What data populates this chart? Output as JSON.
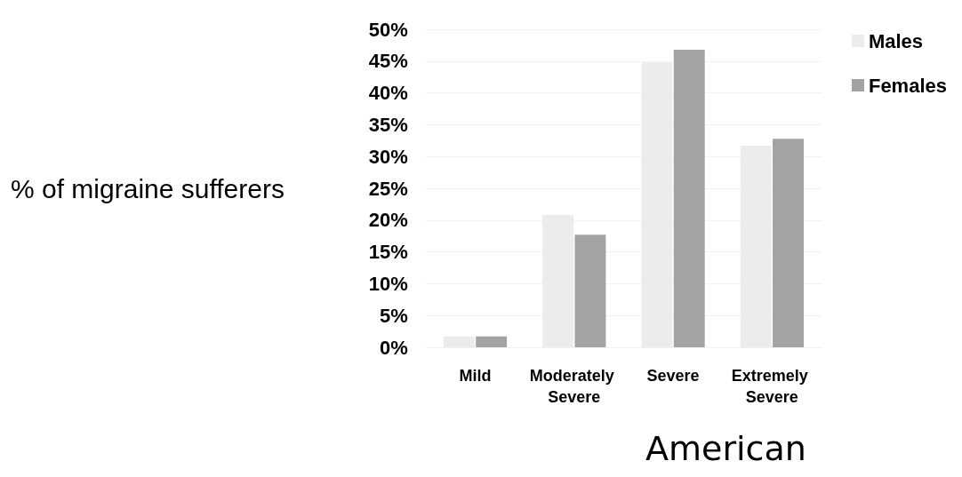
{
  "chart_data": {
    "type": "bar",
    "xlabel": "American",
    "ylabel": "% of migraine sufferers",
    "categories": [
      "Mild",
      "Moderately Severe",
      "Severe",
      "Extremely Severe"
    ],
    "series": [
      {
        "name": "Males",
        "color": "#ececec",
        "values": [
          1.7,
          20.8,
          44.8,
          31.7
        ]
      },
      {
        "name": "Females",
        "color": "#a3a3a3",
        "values": [
          1.7,
          17.7,
          46.8,
          32.8
        ]
      }
    ],
    "ylim": [
      0,
      50
    ],
    "yticks": [
      {
        "value": 0,
        "label": "0%"
      },
      {
        "value": 5,
        "label": "5%"
      },
      {
        "value": 10,
        "label": "10%"
      },
      {
        "value": 15,
        "label": "15%"
      },
      {
        "value": 20,
        "label": "20%"
      },
      {
        "value": 25,
        "label": "25%"
      },
      {
        "value": 30,
        "label": "30%"
      },
      {
        "value": 35,
        "label": "35%"
      },
      {
        "value": 40,
        "label": "40%"
      },
      {
        "value": 45,
        "label": "45%"
      },
      {
        "value": 50,
        "label": "50%"
      }
    ],
    "grid": "y",
    "legend": "right"
  }
}
